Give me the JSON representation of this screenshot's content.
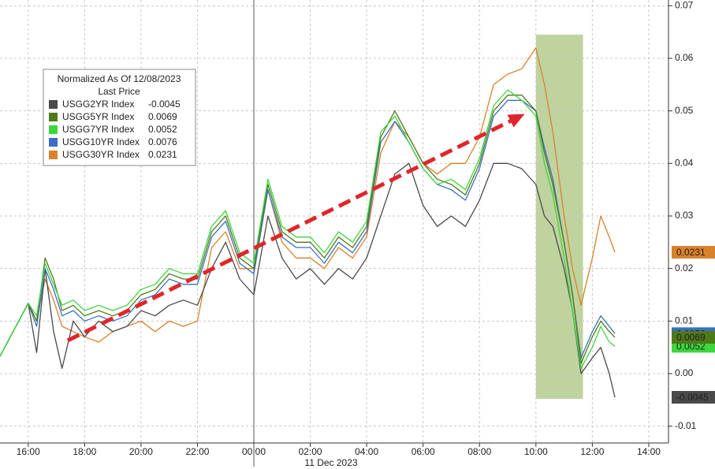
{
  "chart_data": {
    "type": "line",
    "legend_title": "Normalized As Of 12/08/2023",
    "legend_subtitle": "Last Price",
    "date_label": "11 Dec 2023",
    "x": [
      15,
      16,
      16.3,
      16.6,
      16.9,
      17.2,
      17.6,
      18,
      18.5,
      19,
      19.5,
      20,
      20.5,
      21,
      21.5,
      22,
      22.5,
      23,
      23.5,
      24,
      24.5,
      25,
      25.5,
      26,
      26.5,
      27,
      27.5,
      28,
      28.5,
      29,
      29.5,
      30,
      30.5,
      31,
      31.5,
      32,
      32.5,
      33,
      33.5,
      34,
      34.3,
      34.6,
      35,
      35.3,
      35.6,
      36,
      36.3,
      36.6,
      36.8
    ],
    "series": [
      {
        "name": "USGG2YR Index",
        "last": -0.0045,
        "color": "#4a4a4a",
        "values": [
          0.0033,
          0.0134,
          0.004,
          0.02,
          0.008,
          0.001,
          0.01,
          0.007,
          0.01,
          0.008,
          0.009,
          0.012,
          0.011,
          0.013,
          0.014,
          0.013,
          0.02,
          0.025,
          0.018,
          0.015,
          0.03,
          0.022,
          0.018,
          0.02,
          0.017,
          0.02,
          0.018,
          0.022,
          0.03,
          0.038,
          0.04,
          0.032,
          0.028,
          0.03,
          0.028,
          0.033,
          0.04,
          0.04,
          0.039,
          0.036,
          0.03,
          0.028,
          0.02,
          0.012,
          0.0,
          0.003,
          0.005,
          0.0,
          -0.0045
        ]
      },
      {
        "name": "USGG5YR Index",
        "last": 0.0069,
        "color": "#4f7a1a",
        "values": [
          0.0033,
          0.0134,
          0.01,
          0.022,
          0.018,
          0.012,
          0.013,
          0.011,
          0.012,
          0.011,
          0.012,
          0.015,
          0.016,
          0.019,
          0.018,
          0.018,
          0.027,
          0.03,
          0.022,
          0.02,
          0.036,
          0.027,
          0.025,
          0.025,
          0.022,
          0.026,
          0.024,
          0.028,
          0.045,
          0.05,
          0.045,
          0.04,
          0.037,
          0.036,
          0.034,
          0.04,
          0.05,
          0.053,
          0.053,
          0.05,
          0.042,
          0.036,
          0.025,
          0.015,
          0.002,
          0.007,
          0.01,
          0.008,
          0.0069
        ]
      },
      {
        "name": "USGG7YR Index",
        "last": 0.0052,
        "color": "#3ed63e",
        "values": [
          0.0033,
          0.0134,
          0.011,
          0.021,
          0.017,
          0.013,
          0.014,
          0.012,
          0.013,
          0.012,
          0.013,
          0.016,
          0.017,
          0.02,
          0.019,
          0.019,
          0.028,
          0.031,
          0.023,
          0.021,
          0.037,
          0.028,
          0.026,
          0.026,
          0.023,
          0.027,
          0.025,
          0.029,
          0.046,
          0.049,
          0.044,
          0.039,
          0.036,
          0.037,
          0.035,
          0.041,
          0.051,
          0.054,
          0.052,
          0.049,
          0.04,
          0.034,
          0.022,
          0.012,
          0.001,
          0.005,
          0.009,
          0.006,
          0.0052
        ]
      },
      {
        "name": "USGG10YR Index",
        "last": 0.0076,
        "color": "#3a6ec4",
        "values": [
          0.0033,
          0.0134,
          0.009,
          0.02,
          0.016,
          0.011,
          0.012,
          0.01,
          0.011,
          0.01,
          0.011,
          0.014,
          0.015,
          0.018,
          0.017,
          0.017,
          0.026,
          0.029,
          0.021,
          0.019,
          0.035,
          0.026,
          0.024,
          0.024,
          0.021,
          0.025,
          0.023,
          0.027,
          0.044,
          0.048,
          0.044,
          0.039,
          0.036,
          0.035,
          0.033,
          0.039,
          0.049,
          0.052,
          0.052,
          0.05,
          0.043,
          0.037,
          0.025,
          0.015,
          0.003,
          0.008,
          0.011,
          0.009,
          0.0076
        ]
      },
      {
        "name": "USGG30YR Index",
        "last": 0.0231,
        "color": "#d9822b",
        "values": [
          0.0033,
          0.0134,
          0.01,
          0.018,
          0.014,
          0.009,
          0.008,
          0.007,
          0.006,
          0.008,
          0.009,
          0.01,
          0.008,
          0.01,
          0.009,
          0.01,
          0.024,
          0.027,
          0.02,
          0.02,
          0.035,
          0.025,
          0.022,
          0.022,
          0.02,
          0.024,
          0.022,
          0.026,
          0.042,
          0.048,
          0.045,
          0.04,
          0.038,
          0.04,
          0.04,
          0.045,
          0.055,
          0.057,
          0.058,
          0.062,
          0.055,
          0.046,
          0.03,
          0.02,
          0.013,
          0.022,
          0.03,
          0.026,
          0.0231
        ]
      }
    ],
    "xlim": [
      15,
      38.7
    ],
    "ylim": [
      -0.0132,
      0.0711
    ],
    "xticks": [
      {
        "value": 16,
        "label": "16:00"
      },
      {
        "value": 18,
        "label": "18:00"
      },
      {
        "value": 20,
        "label": "20:00"
      },
      {
        "value": 22,
        "label": "22:00"
      },
      {
        "value": 24,
        "label": "00:00"
      },
      {
        "value": 26,
        "label": "02:00"
      },
      {
        "value": 28,
        "label": "04:00"
      },
      {
        "value": 30,
        "label": "06:00"
      },
      {
        "value": 32,
        "label": "08:00"
      },
      {
        "value": 34,
        "label": "10:00"
      },
      {
        "value": 36,
        "label": "12:00"
      },
      {
        "value": 38,
        "label": "14:00"
      }
    ],
    "yticks": [
      -0.01,
      {
        "value": 0,
        "label": "0.00"
      },
      0.01,
      0.02,
      0.03,
      0.04,
      0.05,
      0.06,
      0.07
    ],
    "day_divider": 24,
    "highlight": {
      "xlim": [
        34,
        35.67
      ],
      "ylim": [
        -0.0048,
        0.0645
      ],
      "color": "#a9c47f"
    },
    "arrow": {
      "x": [
        17.4,
        33.6
      ],
      "y": [
        0.0063,
        0.0494
      ],
      "color": "#e0252b"
    },
    "grid": true
  }
}
